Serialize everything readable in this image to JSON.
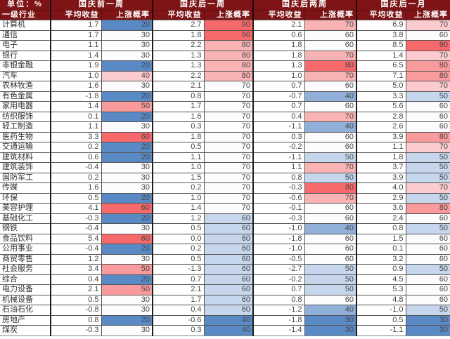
{
  "colors": {
    "header_bg": "#7E1416",
    "header_text": "#ffffff",
    "body_text": "#474747",
    "grid_line": "#555555",
    "group_line": "#1c1c1c",
    "scale_red": "#F8696B",
    "scale_mid": "#FCFCFF",
    "scale_blue": "#5A8AC6"
  },
  "chart_data": {
    "type": "table",
    "title": "",
    "unit_label": "单位：%",
    "industry_header": "一级行业",
    "groups": [
      "国庆前一周",
      "国庆后一周",
      "国庆后两周",
      "国庆后一月"
    ],
    "sub_headers": [
      "平均收益",
      "上涨概率"
    ],
    "prob_color_scales": [
      {
        "min": 20,
        "mid": 30,
        "max": 60
      },
      {
        "min": 40,
        "mid": 70,
        "max": 90
      },
      {
        "min": 30,
        "mid": 60,
        "max": 80
      },
      {
        "min": 30,
        "mid": 60,
        "max": 90
      }
    ],
    "rows": [
      {
        "industry": "计算机",
        "values": [
          1.7,
          20,
          2.7,
          90,
          2.1,
          70,
          6.9,
          70
        ]
      },
      {
        "industry": "通信",
        "values": [
          1.7,
          30,
          1.8,
          90,
          0.6,
          60,
          3.8,
          60
        ]
      },
      {
        "industry": "电子",
        "values": [
          1.1,
          30,
          2.2,
          80,
          1.8,
          60,
          8.5,
          90
        ]
      },
      {
        "industry": "银行",
        "values": [
          1.4,
          30,
          1.3,
          80,
          1.8,
          70,
          1.4,
          70
        ]
      },
      {
        "industry": "非银金融",
        "values": [
          1.9,
          20,
          1.3,
          80,
          1.3,
          80,
          6.5,
          80
        ]
      },
      {
        "industry": "汽车",
        "values": [
          1.0,
          40,
          2.2,
          80,
          1.0,
          70,
          7.1,
          80
        ]
      },
      {
        "industry": "农林牧渔",
        "values": [
          1.6,
          30,
          2.1,
          70,
          0.7,
          60,
          5.0,
          70
        ]
      },
      {
        "industry": "有色金属",
        "values": [
          -1.8,
          20,
          0.8,
          70,
          -0.7,
          40,
          3.3,
          50
        ]
      },
      {
        "industry": "家用电器",
        "values": [
          1.4,
          50,
          1.7,
          70,
          0.7,
          60,
          5.6,
          60
        ]
      },
      {
        "industry": "纺织服饰",
        "values": [
          0.1,
          20,
          1.6,
          70,
          0.4,
          70,
          2.8,
          60
        ]
      },
      {
        "industry": "轻工制造",
        "values": [
          1.1,
          30,
          0.3,
          70,
          -1.1,
          40,
          2.6,
          60
        ]
      },
      {
        "industry": "医药生物",
        "values": [
          3.3,
          60,
          1.8,
          70,
          0.3,
          60,
          3.9,
          80
        ]
      },
      {
        "industry": "交通运输",
        "values": [
          0.2,
          20,
          0.5,
          70,
          -0.2,
          60,
          1.1,
          70
        ]
      },
      {
        "industry": "建筑材料",
        "values": [
          0.6,
          20,
          1.1,
          70,
          -1.1,
          50,
          1.8,
          50
        ]
      },
      {
        "industry": "建筑装饰",
        "values": [
          -0.4,
          30,
          1.0,
          70,
          1.1,
          70,
          3.7,
          50
        ]
      },
      {
        "industry": "国防军工",
        "values": [
          0.2,
          30,
          1.5,
          70,
          0.8,
          50,
          3.9,
          50
        ]
      },
      {
        "industry": "传媒",
        "values": [
          1.6,
          30,
          0.2,
          70,
          -0.3,
          80,
          4.0,
          70
        ]
      },
      {
        "industry": "环保",
        "values": [
          0.5,
          20,
          1.0,
          70,
          -0.6,
          70,
          2.9,
          50
        ]
      },
      {
        "industry": "美容护理",
        "values": [
          4.1,
          60,
          1.4,
          70,
          -0.1,
          60,
          3.6,
          80
        ]
      },
      {
        "industry": "基础化工",
        "values": [
          -0.3,
          20,
          1.2,
          60,
          -0.3,
          60,
          2.4,
          60
        ]
      },
      {
        "industry": "钢铁",
        "values": [
          -0.4,
          30,
          0.5,
          60,
          -1.0,
          40,
          0.8,
          50
        ]
      },
      {
        "industry": "食品饮料",
        "values": [
          5.4,
          60,
          0.0,
          60,
          -1.8,
          60,
          1.5,
          60
        ]
      },
      {
        "industry": "公用事业",
        "values": [
          -0.4,
          20,
          0.2,
          60,
          -1.0,
          60,
          0.1,
          60
        ]
      },
      {
        "industry": "商贸零售",
        "values": [
          1.2,
          30,
          0.5,
          60,
          -0.5,
          60,
          3.2,
          60
        ]
      },
      {
        "industry": "社会服务",
        "values": [
          3.4,
          50,
          -1.3,
          60,
          -2.7,
          50,
          0.9,
          50
        ]
      },
      {
        "industry": "综合",
        "values": [
          0.4,
          20,
          0.7,
          60,
          -0.2,
          50,
          4.5,
          60
        ]
      },
      {
        "industry": "电力设备",
        "values": [
          2.1,
          50,
          2.1,
          60,
          0.7,
          50,
          5.3,
          60
        ]
      },
      {
        "industry": "机械设备",
        "values": [
          0.5,
          30,
          1.7,
          60,
          0.8,
          60,
          4.8,
          60
        ]
      },
      {
        "industry": "石油石化",
        "values": [
          -0.8,
          30,
          0.4,
          60,
          -1.2,
          40,
          -1.0,
          50
        ]
      },
      {
        "industry": "房地产",
        "values": [
          0.8,
          20,
          -0.6,
          40,
          -1.8,
          30,
          0.5,
          30
        ]
      },
      {
        "industry": "煤炭",
        "values": [
          -0.3,
          30,
          0.3,
          40,
          -1.4,
          30,
          -1.1,
          30
        ]
      }
    ]
  }
}
